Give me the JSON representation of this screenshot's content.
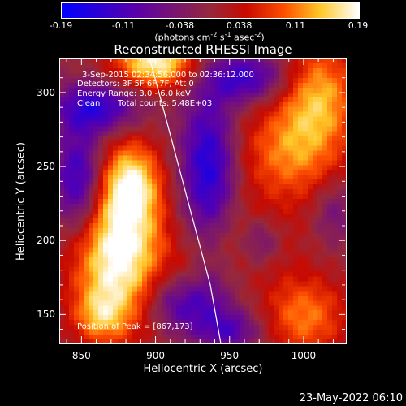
{
  "colorbar": {
    "ticks": [
      "-0.19",
      "-0.11",
      "-0.038",
      "0.038",
      "0.11",
      "0.19"
    ],
    "tick_values": [
      -0.19,
      -0.11,
      -0.038,
      0.038,
      0.11,
      0.19
    ],
    "range": [
      -0.19,
      0.19
    ],
    "units_prefix": "(photons cm",
    "units_exp1": "-2",
    "units_mid1": " s",
    "units_exp2": "-1",
    "units_mid2": " asec",
    "units_exp3": "-2",
    "units_suffix": ")"
  },
  "annotations": {
    "time": "3-Sep-2015 02:34:56.000 to 02:36:12.000",
    "detectors": "Detectors: 3F 5F 6F 7F, Att 0",
    "energy": "Energy Range: 3.0 - 6.0 keV",
    "clean_label": "Clean",
    "counts": "Total counts: 5.48E+03",
    "peak": "Position of Peak = [867,173]"
  },
  "footer": {
    "timestamp": "23-May-2022 06:10"
  },
  "chart_data": {
    "type": "heatmap",
    "title": "Reconstructed RHESSI Image",
    "xlabel": "Heliocentric X (arcsec)",
    "ylabel": "Heliocentric Y (arcsec)",
    "xlim": [
      835,
      1028
    ],
    "ylim": [
      131,
      323
    ],
    "xticks": [
      850,
      900,
      950,
      1000
    ],
    "yticks": [
      150,
      200,
      250,
      300
    ],
    "colormap": "rhessi-blue-purple-red-yellow-white",
    "limb": [
      [
        896,
        323
      ],
      [
        905,
        290
      ],
      [
        913,
        260
      ],
      [
        921,
        230
      ],
      [
        929,
        200
      ],
      [
        937,
        170
      ],
      [
        944,
        131
      ]
    ],
    "blobs": [
      {
        "x": 875,
        "y": 190,
        "sx": 22,
        "sy": 35,
        "a": 0.2
      },
      {
        "x": 883,
        "y": 240,
        "sx": 14,
        "sy": 20,
        "a": 0.14
      },
      {
        "x": 862,
        "y": 150,
        "sx": 12,
        "sy": 12,
        "a": 0.08
      },
      {
        "x": 900,
        "y": 320,
        "sx": 20,
        "sy": 12,
        "a": 0.18
      },
      {
        "x": 990,
        "y": 260,
        "sx": 25,
        "sy": 25,
        "a": 0.11
      },
      {
        "x": 1010,
        "y": 300,
        "sx": 18,
        "sy": 25,
        "a": 0.12
      },
      {
        "x": 1000,
        "y": 150,
        "sx": 20,
        "sy": 20,
        "a": 0.11
      },
      {
        "x": 965,
        "y": 200,
        "sx": 20,
        "sy": 18,
        "a": 0.06
      },
      {
        "x": 920,
        "y": 175,
        "sx": 10,
        "sy": 15,
        "a": 0.05
      },
      {
        "x": 935,
        "y": 250,
        "sx": 13,
        "sy": 35,
        "a": -0.16
      },
      {
        "x": 920,
        "y": 160,
        "sx": 18,
        "sy": 15,
        "a": -0.14
      },
      {
        "x": 960,
        "y": 310,
        "sx": 20,
        "sy": 12,
        "a": -0.13
      },
      {
        "x": 860,
        "y": 290,
        "sx": 20,
        "sy": 12,
        "a": -0.14
      },
      {
        "x": 848,
        "y": 240,
        "sx": 12,
        "sy": 25,
        "a": -0.15
      },
      {
        "x": 970,
        "y": 200,
        "sx": 10,
        "sy": 12,
        "a": -0.1
      },
      {
        "x": 1020,
        "y": 220,
        "sx": 10,
        "sy": 15,
        "a": -0.06
      },
      {
        "x": 950,
        "y": 140,
        "sx": 15,
        "sy": 10,
        "a": -0.1
      }
    ]
  }
}
